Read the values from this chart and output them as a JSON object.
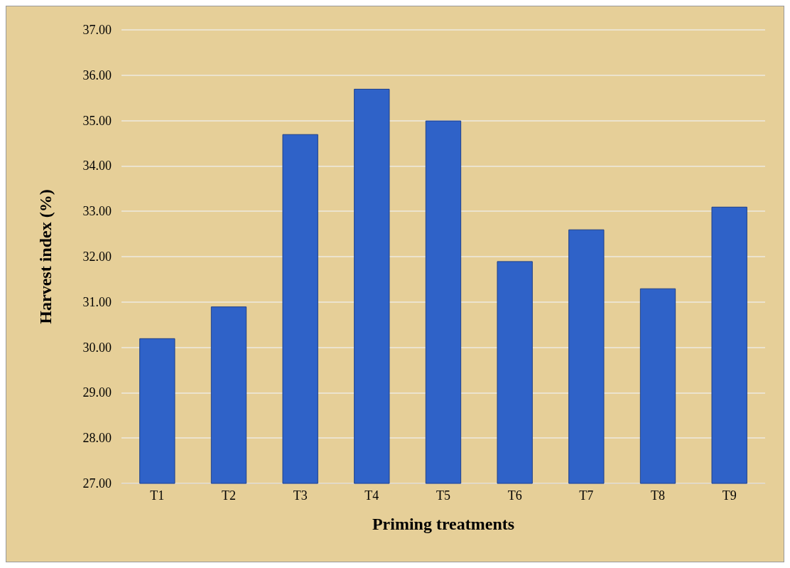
{
  "chart_data": {
    "type": "bar",
    "xlabel": "Priming treatments",
    "ylabel": "Harvest index (%)",
    "categories": [
      "T1",
      "T2",
      "T3",
      "T4",
      "T5",
      "T6",
      "T7",
      "T8",
      "T9"
    ],
    "values": [
      30.2,
      30.9,
      34.7,
      35.7,
      35.0,
      31.9,
      32.6,
      31.3,
      33.1
    ],
    "color": "#2f62c8",
    "ylim": [
      27,
      37
    ],
    "yticks": [
      {
        "value": 27,
        "label": "27.00"
      },
      {
        "value": 28,
        "label": "28.00"
      },
      {
        "value": 29,
        "label": "29.00"
      },
      {
        "value": 30,
        "label": "30.00"
      },
      {
        "value": 31,
        "label": "31.00"
      },
      {
        "value": 32,
        "label": "32.00"
      },
      {
        "value": 33,
        "label": "33.00"
      },
      {
        "value": 34,
        "label": "34.00"
      },
      {
        "value": 35,
        "label": "35.00"
      },
      {
        "value": 36,
        "label": "36.00"
      },
      {
        "value": 37,
        "label": "37.00"
      }
    ],
    "grid": "y"
  }
}
